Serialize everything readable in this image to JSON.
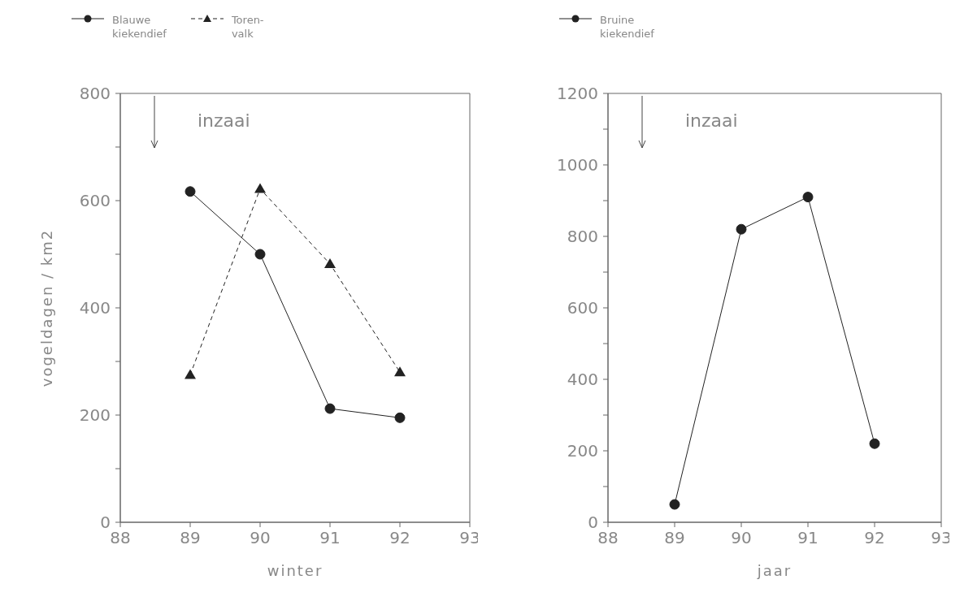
{
  "chart_data": [
    {
      "type": "line",
      "xlabel": "winter",
      "ylabel": "vogeldagen / km2",
      "x": [
        89,
        90,
        91,
        92
      ],
      "xlim": [
        88,
        93
      ],
      "xticks": [
        88,
        89,
        90,
        91,
        92,
        93
      ],
      "ylim": [
        0,
        800
      ],
      "yticks": [
        0,
        {
          "value": 100,
          "label": null
        },
        200,
        {
          "value": 300,
          "label": null
        },
        400,
        {
          "value": 500,
          "label": null
        },
        600,
        {
          "value": 700,
          "label": null
        },
        800
      ],
      "legend": "top",
      "grid": false,
      "annotations": [
        "inzaai"
      ],
      "series": [
        {
          "name": "Blauwe kiekendief",
          "color": "#222222",
          "marker": "circle",
          "line_style": "solid",
          "values": [
            617,
            500,
            212,
            195
          ]
        },
        {
          "name": "Toren-valk",
          "color": "#222222",
          "marker": "triangle",
          "line_style": "dashed",
          "values": [
            275,
            622,
            482,
            280
          ]
        }
      ]
    },
    {
      "type": "line",
      "xlabel": "jaar",
      "x": [
        89,
        90,
        91,
        92
      ],
      "xlim": [
        88,
        93
      ],
      "xticks": [
        88,
        89,
        90,
        91,
        92,
        93
      ],
      "ylim": [
        0,
        1200
      ],
      "yticks": [
        0,
        {
          "value": 100,
          "label": null
        },
        200,
        {
          "value": 300,
          "label": null
        },
        400,
        {
          "value": 500,
          "label": null
        },
        600,
        {
          "value": 700,
          "label": null
        },
        800,
        {
          "value": 900,
          "label": null
        },
        1000,
        {
          "value": 1100,
          "label": null
        },
        1200
      ],
      "legend": "top",
      "grid": false,
      "annotations": [
        "inzaai"
      ],
      "series": [
        {
          "name": "Bruine kiekendief",
          "color": "#222222",
          "marker": "circle",
          "line_style": "solid",
          "values": [
            50,
            820,
            910,
            220
          ]
        }
      ]
    }
  ]
}
